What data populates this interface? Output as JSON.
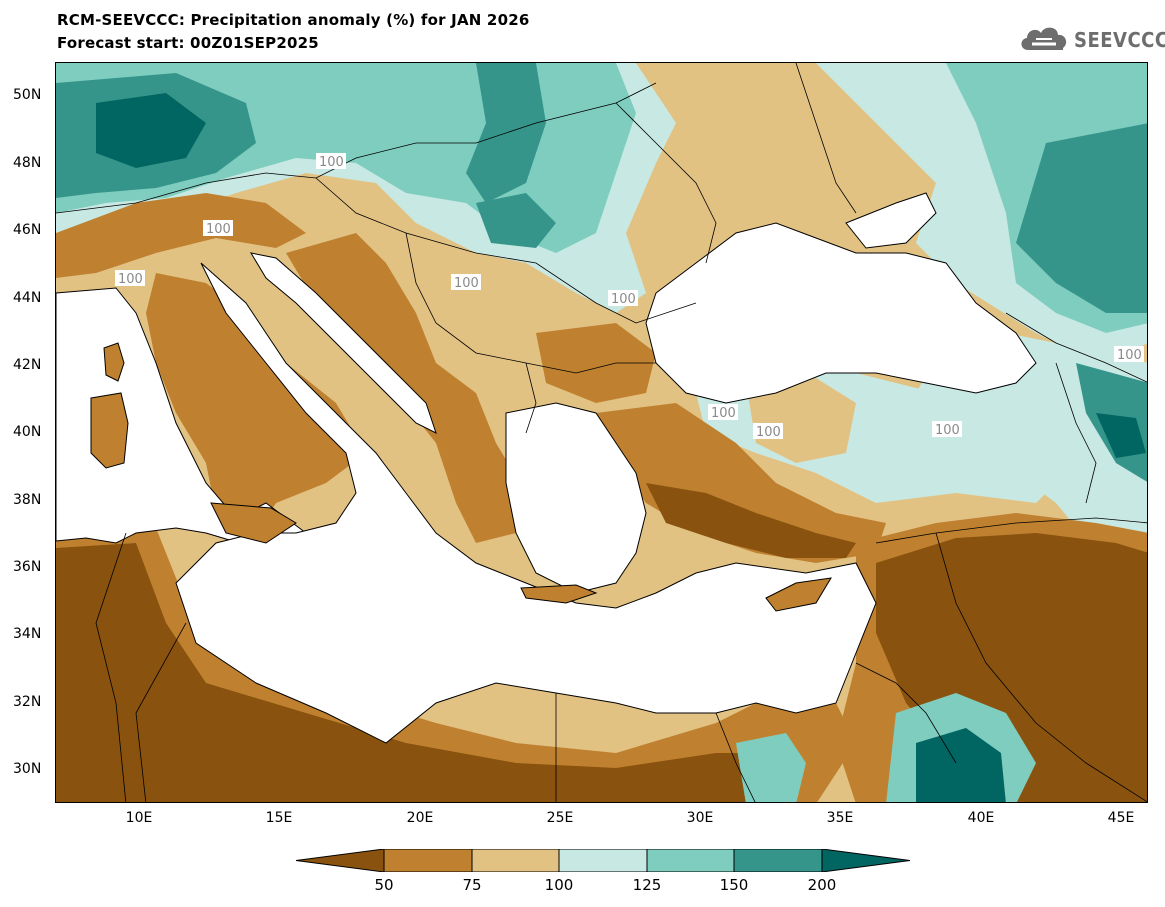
{
  "header": {
    "title_line1": "RCM-SEEVCCC: Precipitation anomaly (%) for JAN 2026",
    "title_line2": "Forecast start: 00Z01SEP2025",
    "logo_text": "SEEVCCC",
    "logo_icon": "cloud-icon"
  },
  "map": {
    "lat_ticks": [
      "50N",
      "48N",
      "46N",
      "44N",
      "42N",
      "40N",
      "38N",
      "36N",
      "34N",
      "32N",
      "30N"
    ],
    "lon_ticks": [
      "10E",
      "15E",
      "20E",
      "25E",
      "30E",
      "35E",
      "40E",
      "45E"
    ],
    "contour_labels": [
      "100",
      "100",
      "100",
      "100",
      "100",
      "100",
      "100",
      "100",
      "100"
    ],
    "palette": {
      "below_50": "#8a520f",
      "50_75": "#bf8130",
      "75_100": "#e2c283",
      "100_125": "#c8e9e3",
      "125_150": "#7fcdbf",
      "150_200": "#35958b",
      "above_200": "#016561",
      "sea": "#ffffff"
    }
  },
  "colorbar": {
    "labels": [
      "50",
      "75",
      "100",
      "125",
      "150",
      "200"
    ],
    "colors": [
      "#8a520f",
      "#bf8130",
      "#e2c283",
      "#c8e9e3",
      "#7fcdbf",
      "#35958b",
      "#016561"
    ]
  }
}
